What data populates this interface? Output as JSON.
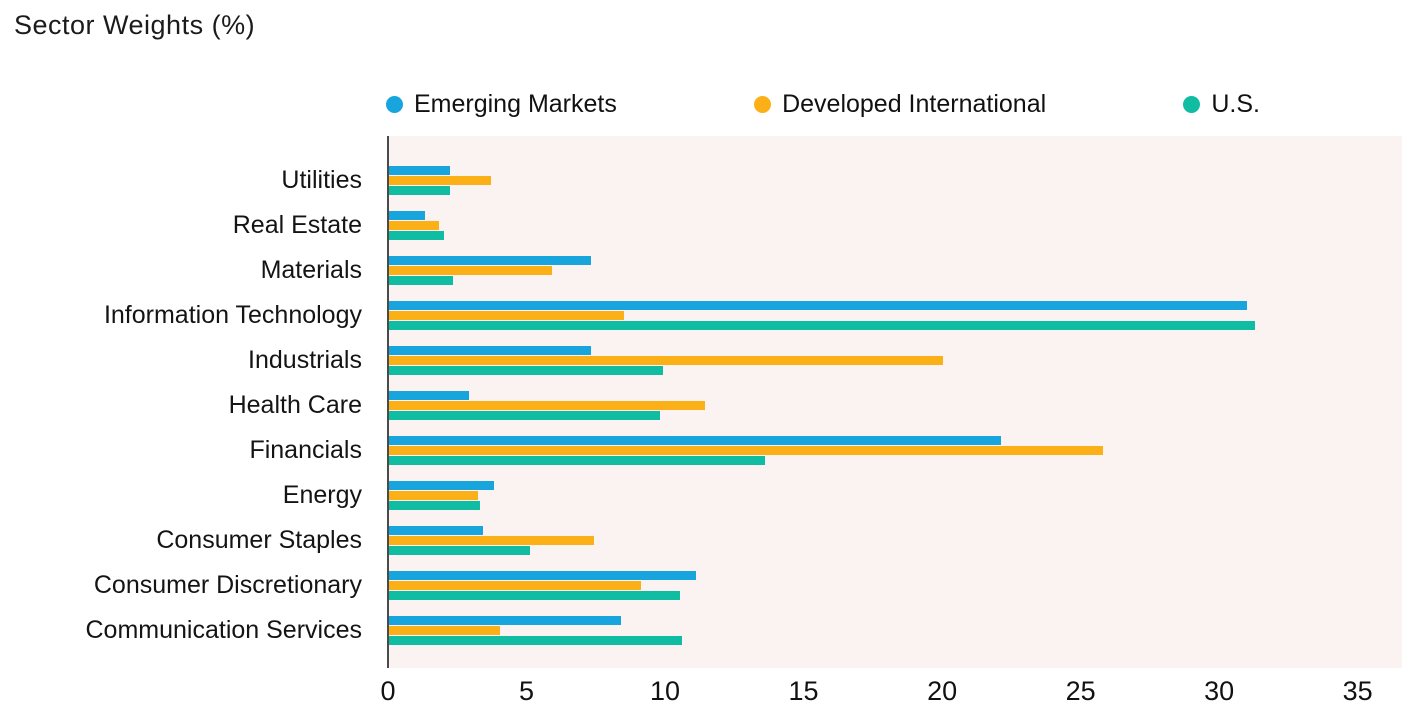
{
  "title": "Sector Weights (%)",
  "colors": {
    "emerging_markets": "#18a5de",
    "developed_international": "#fbb018",
    "us": "#10bda3",
    "plot_background": "#faf3f1",
    "axis_line": "#4a4a4a",
    "text": "#1a1a1a"
  },
  "legend": {
    "items": [
      {
        "label": "Emerging Markets",
        "color": "#18a5de"
      },
      {
        "label": "Developed International",
        "color": "#fbb018"
      },
      {
        "label": "U.S.",
        "color": "#10bda3"
      }
    ]
  },
  "chart_data": {
    "type": "bar",
    "orientation": "horizontal",
    "title": "Sector Weights (%)",
    "categories": [
      "Utilities",
      "Real Estate",
      "Materials",
      "Information Technology",
      "Industrials",
      "Health Care",
      "Financials",
      "Energy",
      "Consumer Staples",
      "Consumer Discretionary",
      "Communication Services"
    ],
    "series": [
      {
        "name": "Emerging Markets",
        "color": "#18a5de",
        "values": [
          2.2,
          1.3,
          7.3,
          31.0,
          7.3,
          2.9,
          22.1,
          3.8,
          3.4,
          11.1,
          8.4
        ]
      },
      {
        "name": "Developed International",
        "color": "#fbb018",
        "values": [
          3.7,
          1.8,
          5.9,
          8.5,
          20.0,
          11.4,
          25.8,
          3.2,
          7.4,
          9.1,
          4.0
        ]
      },
      {
        "name": "U.S.",
        "color": "#10bda3",
        "values": [
          2.2,
          2.0,
          2.3,
          31.3,
          9.9,
          9.8,
          13.6,
          3.3,
          5.1,
          10.5,
          10.6
        ]
      }
    ],
    "xlabel": "",
    "ylabel": "",
    "x_ticks": [
      0,
      5,
      10,
      15,
      20,
      25,
      30,
      35
    ],
    "x_axis_render_max": 36.6,
    "xlim": [
      0,
      35
    ],
    "grid": false,
    "legend_position": "top"
  }
}
